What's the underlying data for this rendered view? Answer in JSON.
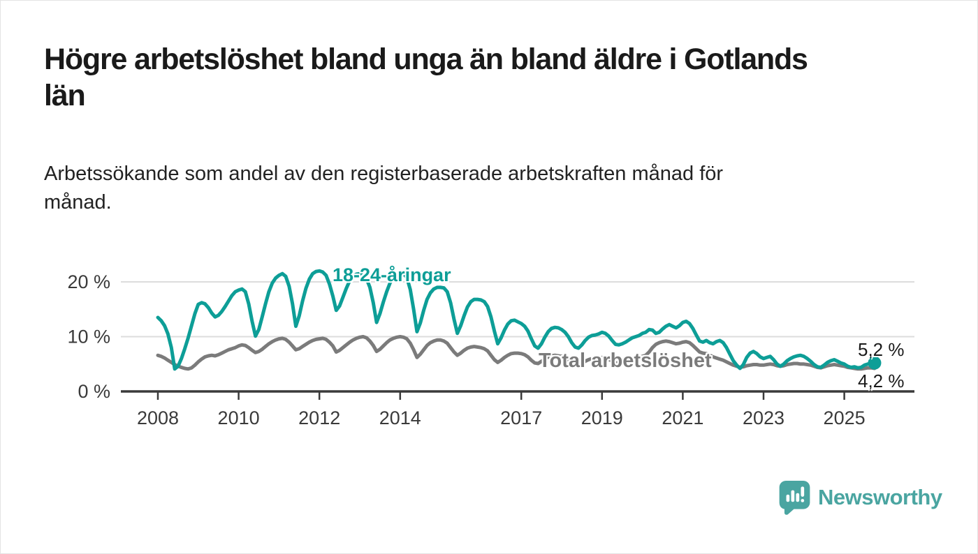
{
  "header": {
    "title_lines": [
      "Högre arbetslöshet bland unga än bland äldre i Gotlands",
      "län"
    ],
    "subtitle_lines": [
      "Arbetssökande som andel av den registerbaserade arbetskraften månad för",
      "månad."
    ]
  },
  "chart_data": {
    "type": "line",
    "x_unit": "month",
    "x_start": "2008-01",
    "x_end": "2025-10",
    "ylim": [
      0,
      23.5
    ],
    "grid": "horizontal",
    "axis_color": "#3a3a3a",
    "grid_color": "#dcdcdc",
    "y_ticks": [
      {
        "value": 0,
        "label": "0 %"
      },
      {
        "value": 10,
        "label": "10 %"
      },
      {
        "value": 20,
        "label": "20 %"
      }
    ],
    "x_ticks": [
      {
        "year": 2008,
        "label": "2008"
      },
      {
        "year": 2010,
        "label": "2010"
      },
      {
        "year": 2012,
        "label": "2012"
      },
      {
        "year": 2014,
        "label": "2014"
      },
      {
        "year": 2017,
        "label": "2017"
      },
      {
        "year": 2019,
        "label": "2019"
      },
      {
        "year": 2021,
        "label": "2021"
      },
      {
        "year": 2023,
        "label": "2023"
      },
      {
        "year": 2025,
        "label": "2025"
      }
    ],
    "series": [
      {
        "name": "18-24-åringar",
        "color": "#0d9e97",
        "end_label": "5,2 %",
        "end_dot": true,
        "values": [
          13.5,
          12.9,
          12.0,
          10.5,
          8.0,
          4.1,
          4.6,
          6.0,
          7.8,
          9.8,
          12.0,
          14.2,
          15.9,
          16.2,
          16.0,
          15.3,
          14.3,
          13.6,
          13.9,
          14.6,
          15.5,
          16.5,
          17.5,
          18.2,
          18.5,
          18.7,
          18.2,
          16.0,
          12.8,
          10.1,
          11.3,
          13.6,
          16.0,
          18.2,
          19.8,
          20.7,
          21.2,
          21.5,
          21.0,
          19.2,
          16.0,
          11.9,
          13.8,
          16.5,
          18.8,
          20.5,
          21.5,
          21.9,
          22.0,
          21.8,
          21.2,
          19.6,
          17.4,
          14.8,
          15.6,
          17.2,
          18.8,
          20.2,
          21.0,
          21.4,
          21.5,
          21.2,
          20.6,
          19.0,
          16.2,
          12.6,
          14.2,
          16.3,
          18.2,
          19.8,
          20.9,
          21.3,
          21.4,
          21.5,
          20.8,
          18.6,
          15.0,
          10.9,
          12.5,
          14.8,
          16.8,
          18.0,
          18.7,
          19.0,
          19.0,
          18.9,
          18.2,
          16.2,
          13.2,
          10.6,
          12.0,
          13.8,
          15.4,
          16.4,
          16.8,
          16.8,
          16.7,
          16.4,
          15.5,
          13.6,
          11.0,
          8.7,
          9.8,
          11.2,
          12.3,
          12.9,
          13.0,
          12.7,
          12.4,
          11.9,
          11.0,
          9.6,
          8.3,
          7.9,
          8.7,
          9.9,
          10.9,
          11.5,
          11.7,
          11.6,
          11.3,
          10.8,
          10.0,
          8.9,
          8.1,
          7.9,
          8.5,
          9.3,
          9.9,
          10.2,
          10.3,
          10.5,
          10.8,
          10.6,
          10.1,
          9.3,
          8.6,
          8.5,
          8.7,
          9.0,
          9.4,
          9.8,
          10.0,
          10.2,
          10.6,
          10.8,
          11.3,
          11.2,
          10.6,
          10.8,
          11.4,
          11.9,
          12.2,
          11.9,
          11.6,
          12.0,
          12.6,
          12.8,
          12.4,
          11.5,
          10.3,
          9.2,
          9.0,
          9.3,
          8.9,
          8.7,
          9.1,
          9.3,
          8.9,
          8.0,
          6.8,
          5.6,
          4.8,
          4.2,
          4.9,
          6.2,
          7.0,
          7.3,
          6.9,
          6.3,
          6.0,
          6.2,
          6.4,
          5.8,
          5.0,
          4.6,
          5.0,
          5.6,
          6.0,
          6.3,
          6.5,
          6.6,
          6.4,
          6.0,
          5.5,
          4.9,
          4.5,
          4.4,
          4.8,
          5.3,
          5.6,
          5.8,
          5.5,
          5.2,
          5.0,
          4.6,
          4.4,
          4.5,
          4.3,
          4.4,
          4.8,
          5.0,
          5.2,
          5.2
        ]
      },
      {
        "name": "Total arbetslöshet",
        "color": "#7b7b7b",
        "end_label": "4,2 %",
        "end_dot": false,
        "values": [
          6.6,
          6.4,
          6.1,
          5.7,
          5.3,
          4.9,
          4.6,
          4.4,
          4.2,
          4.1,
          4.3,
          4.8,
          5.4,
          5.9,
          6.3,
          6.5,
          6.6,
          6.5,
          6.7,
          7.0,
          7.3,
          7.6,
          7.8,
          8.0,
          8.3,
          8.5,
          8.4,
          8.0,
          7.5,
          7.1,
          7.3,
          7.7,
          8.2,
          8.7,
          9.1,
          9.4,
          9.6,
          9.7,
          9.5,
          9.0,
          8.3,
          7.6,
          7.8,
          8.2,
          8.6,
          9.0,
          9.3,
          9.5,
          9.6,
          9.7,
          9.5,
          9.0,
          8.3,
          7.2,
          7.5,
          8.0,
          8.5,
          9.0,
          9.4,
          9.7,
          9.9,
          10.0,
          9.8,
          9.2,
          8.4,
          7.3,
          7.7,
          8.3,
          8.9,
          9.4,
          9.7,
          9.9,
          10.0,
          9.9,
          9.6,
          8.8,
          7.6,
          6.2,
          6.8,
          7.6,
          8.4,
          8.9,
          9.2,
          9.4,
          9.4,
          9.2,
          8.8,
          8.0,
          7.2,
          6.6,
          7.0,
          7.5,
          7.9,
          8.1,
          8.2,
          8.1,
          8.0,
          7.8,
          7.4,
          6.6,
          5.8,
          5.3,
          5.7,
          6.2,
          6.6,
          6.9,
          7.0,
          7.0,
          6.9,
          6.7,
          6.3,
          5.7,
          5.2,
          5.1,
          5.5,
          5.9,
          6.3,
          6.5,
          6.6,
          6.5,
          6.4,
          6.2,
          5.8,
          5.3,
          4.9,
          4.8,
          5.1,
          5.5,
          5.8,
          6.0,
          6.1,
          6.1,
          6.2,
          6.1,
          5.9,
          5.5,
          5.2,
          5.1,
          5.3,
          5.6,
          5.8,
          6.0,
          6.1,
          6.2,
          6.4,
          6.6,
          7.2,
          8.0,
          8.6,
          8.9,
          9.1,
          9.2,
          9.1,
          8.9,
          8.7,
          8.8,
          9.0,
          9.1,
          8.9,
          8.4,
          7.8,
          7.2,
          7.0,
          6.9,
          6.6,
          6.3,
          6.1,
          5.9,
          5.7,
          5.4,
          5.1,
          4.8,
          4.6,
          4.4,
          4.5,
          4.7,
          4.8,
          4.9,
          4.9,
          4.8,
          4.8,
          4.9,
          5.0,
          4.9,
          4.7,
          4.6,
          4.7,
          4.9,
          5.0,
          5.1,
          5.1,
          5.0,
          5.0,
          4.9,
          4.8,
          4.6,
          4.4,
          4.3,
          4.5,
          4.7,
          4.8,
          4.9,
          4.8,
          4.7,
          4.6,
          4.4,
          4.3,
          4.2,
          4.1,
          4.1,
          4.2,
          4.3,
          4.3,
          4.2
        ]
      }
    ]
  },
  "footer": {
    "brand": "Newsworthy",
    "brand_color": "#4aa5a1",
    "logo_icon": "bar-chart-speech-bubble"
  }
}
